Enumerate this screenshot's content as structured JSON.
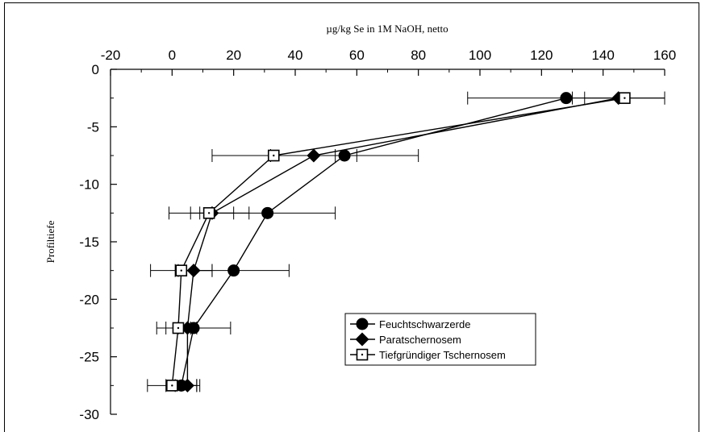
{
  "chart_data": {
    "type": "line",
    "xlabel": "µg/kg Se in 1M NaOH, netto",
    "ylabel": "Profiltiefe",
    "xlim": [
      -20,
      160
    ],
    "ylim": [
      -30,
      0
    ],
    "xticks": [
      -20,
      0,
      20,
      40,
      60,
      80,
      100,
      120,
      140,
      160
    ],
    "yticks": [
      0,
      -5,
      -10,
      -15,
      -20,
      -25,
      -30
    ],
    "x_axis_position": "top",
    "grid": false,
    "legend_position": "lower-right",
    "series": [
      {
        "name": "Feuchtschwarzerde",
        "marker": "filled-circle",
        "points": [
          {
            "x": 128,
            "y": -2.5,
            "err": 32
          },
          {
            "x": 56,
            "y": -7.5,
            "err": 24
          },
          {
            "x": 31,
            "y": -12.5,
            "err": 22
          },
          {
            "x": 20,
            "y": -17.5,
            "err": 18
          },
          {
            "x": 7,
            "y": -22.5,
            "err": 12
          },
          {
            "x": 3,
            "y": -27.5,
            "err": 5
          }
        ]
      },
      {
        "name": "Paratschernosem",
        "marker": "filled-diamond",
        "points": [
          {
            "x": 145,
            "y": -2.5,
            "err": 15
          },
          {
            "x": 46,
            "y": -7.5,
            "err": 14
          },
          {
            "x": 13,
            "y": -12.5,
            "err": 7
          },
          {
            "x": 7,
            "y": -17.5,
            "err": 6
          },
          {
            "x": 5,
            "y": -22.5,
            "err": 3
          },
          {
            "x": 5,
            "y": -27.5,
            "err": 4
          }
        ]
      },
      {
        "name": "Tiefgründiger Tschernosem",
        "marker": "open-square-dot",
        "points": [
          {
            "x": 147,
            "y": -2.5,
            "err": 13
          },
          {
            "x": 33,
            "y": -7.5,
            "err": 20
          },
          {
            "x": 12,
            "y": -12.5,
            "err": 13
          },
          {
            "x": 3,
            "y": -17.5,
            "err": 10
          },
          {
            "x": 2,
            "y": -22.5,
            "err": 4
          },
          {
            "x": 0,
            "y": -27.5,
            "err": 8
          }
        ]
      }
    ]
  }
}
